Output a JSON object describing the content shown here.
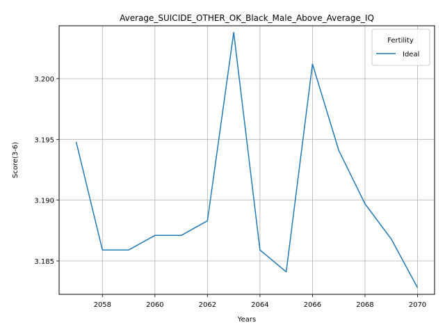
{
  "chart_data": {
    "type": "line",
    "title": "Average_SUICIDE_OTHER_OK_Black_Male_Above_Average_IQ",
    "xlabel": "Years",
    "ylabel": "Score(3-6)",
    "xlim": [
      2056.35,
      2070.65
    ],
    "ylim": [
      3.18225,
      3.20435
    ],
    "xticks": [
      2058,
      2060,
      2062,
      2064,
      2066,
      2068,
      2070
    ],
    "xtick_labels": [
      "2058",
      "2060",
      "2062",
      "2064",
      "2066",
      "2068",
      "2070"
    ],
    "yticks": [
      3.185,
      3.19,
      3.195,
      3.2
    ],
    "ytick_labels": [
      "3.185",
      "3.190",
      "3.195",
      "3.200"
    ],
    "grid": true,
    "legend": {
      "title": "Fertility",
      "position": "top-right"
    },
    "series": [
      {
        "name": "Ideal",
        "color": "#1f77b4",
        "x": [
          2057,
          2058,
          2059,
          2060,
          2061,
          2062,
          2063,
          2064,
          2065,
          2066,
          2067,
          2068,
          2069,
          2070
        ],
        "y": [
          3.1948,
          3.1859,
          3.1859,
          3.1871,
          3.1871,
          3.1883,
          3.2038,
          3.1859,
          3.1841,
          3.2012,
          3.1941,
          3.1897,
          3.1868,
          3.1828
        ]
      }
    ]
  }
}
